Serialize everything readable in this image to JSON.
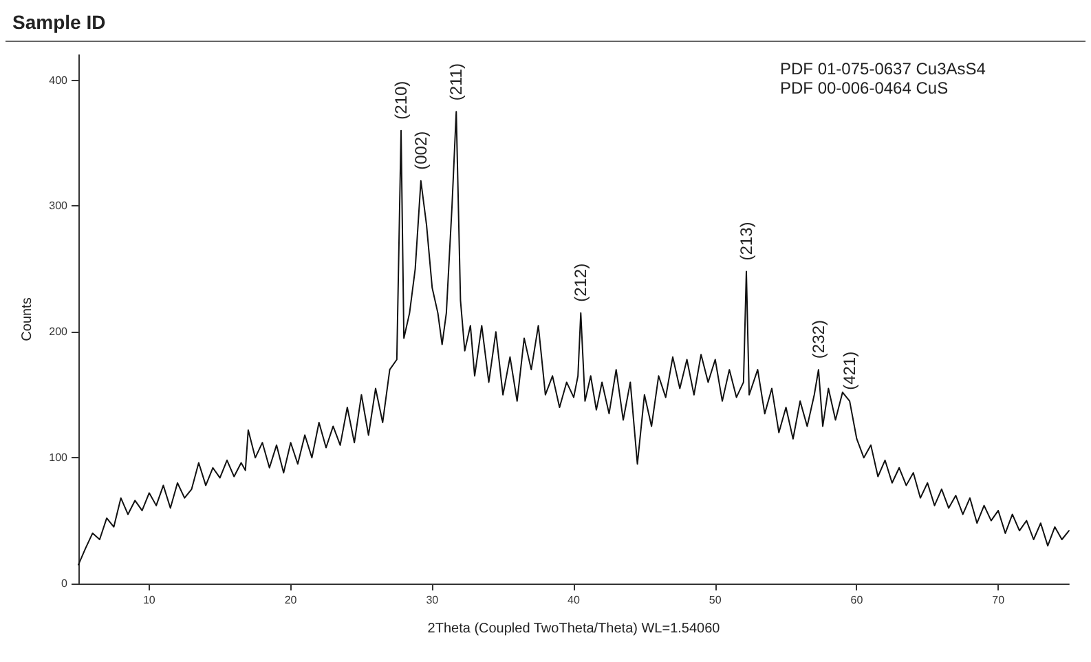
{
  "chart_data": {
    "type": "line",
    "title": "Sample ID",
    "xlabel": "2Theta (Coupled TwoTheta/Theta) WL=1.54060",
    "ylabel": "Counts",
    "x": [
      5,
      5.5,
      6,
      6.5,
      7,
      7.5,
      8,
      8.5,
      9,
      9.5,
      10,
      10.5,
      11,
      11.5,
      12,
      12.5,
      13,
      13.5,
      14,
      14.5,
      15,
      15.5,
      16,
      16.5,
      16.8,
      17,
      17.5,
      18,
      18.5,
      19,
      19.5,
      20,
      20.5,
      21,
      21.5,
      22,
      22.5,
      23,
      23.5,
      24,
      24.5,
      25,
      25.5,
      26,
      26.5,
      27,
      27.5,
      27.8,
      28,
      28.4,
      28.8,
      29.2,
      29.6,
      30,
      30.4,
      30.7,
      31,
      31.4,
      31.7,
      32,
      32.3,
      32.7,
      33,
      33.5,
      34,
      34.5,
      35,
      35.5,
      36,
      36.5,
      37,
      37.5,
      38,
      38.5,
      39,
      39.5,
      40,
      40.3,
      40.5,
      40.8,
      41.2,
      41.6,
      42,
      42.5,
      43,
      43.5,
      44,
      44.5,
      45,
      45.5,
      46,
      46.5,
      47,
      47.5,
      48,
      48.5,
      49,
      49.5,
      50,
      50.5,
      51,
      51.5,
      52,
      52.2,
      52.4,
      53,
      53.5,
      54,
      54.5,
      55,
      55.5,
      56,
      56.5,
      57,
      57.3,
      57.6,
      58,
      58.5,
      59,
      59.5,
      60,
      60.5,
      61,
      61.5,
      62,
      62.5,
      63,
      63.5,
      64,
      64.5,
      65,
      65.5,
      66,
      66.5,
      67,
      67.5,
      68,
      68.5,
      69,
      69.5,
      70,
      70.5,
      71,
      71.5,
      72,
      72.5,
      73,
      73.5,
      74,
      74.5,
      75
    ],
    "series": [
      {
        "color": "#111111",
        "values": [
          15,
          28,
          40,
          35,
          52,
          45,
          68,
          55,
          66,
          58,
          72,
          62,
          78,
          60,
          80,
          68,
          75,
          96,
          78,
          92,
          84,
          98,
          85,
          96,
          90,
          122,
          100,
          112,
          92,
          110,
          88,
          112,
          95,
          118,
          100,
          128,
          108,
          125,
          110,
          140,
          112,
          150,
          118,
          155,
          128,
          170,
          178,
          360,
          195,
          215,
          250,
          320,
          285,
          235,
          215,
          190,
          215,
          300,
          375,
          225,
          185,
          205,
          165,
          205,
          160,
          200,
          150,
          180,
          145,
          195,
          170,
          205,
          150,
          165,
          140,
          160,
          148,
          165,
          215,
          145,
          165,
          138,
          160,
          135,
          170,
          130,
          160,
          95,
          150,
          125,
          165,
          148,
          180,
          155,
          178,
          150,
          182,
          160,
          178,
          145,
          170,
          148,
          160,
          248,
          150,
          170,
          135,
          155,
          120,
          140,
          115,
          145,
          125,
          150,
          170,
          125,
          155,
          130,
          152,
          145,
          115,
          100,
          110,
          85,
          98,
          80,
          92,
          78,
          88,
          68,
          80,
          62,
          75,
          60,
          70,
          55,
          68,
          48,
          62,
          50,
          58,
          40,
          55,
          42,
          50,
          35,
          48,
          30,
          45,
          35,
          42
        ]
      }
    ],
    "xlim": [
      5,
      75
    ],
    "xticks": [
      10,
      20,
      30,
      40,
      50,
      60,
      70
    ],
    "ylim": [
      0,
      420
    ],
    "yticks": [
      0,
      100,
      200,
      300,
      400
    ],
    "grid": false,
    "marker": "none",
    "line_style": "solid",
    "annotations": [
      "PDF 01-075-0637 Cu3AsS4",
      "PDF 00-006-0464 CuS",
      {
        "text": "(210)",
        "x": 27.8,
        "y": 360
      },
      {
        "text": "(002)",
        "x": 29.2,
        "y": 320
      },
      {
        "text": "(211)",
        "x": 31.7,
        "y": 375
      },
      {
        "text": "(212)",
        "x": 40.5,
        "y": 215
      },
      {
        "text": "(213)",
        "x": 52.2,
        "y": 248
      },
      {
        "text": "(232)",
        "x": 57.3,
        "y": 170
      },
      {
        "text": "(421)",
        "x": 59.5,
        "y": 145
      }
    ]
  }
}
